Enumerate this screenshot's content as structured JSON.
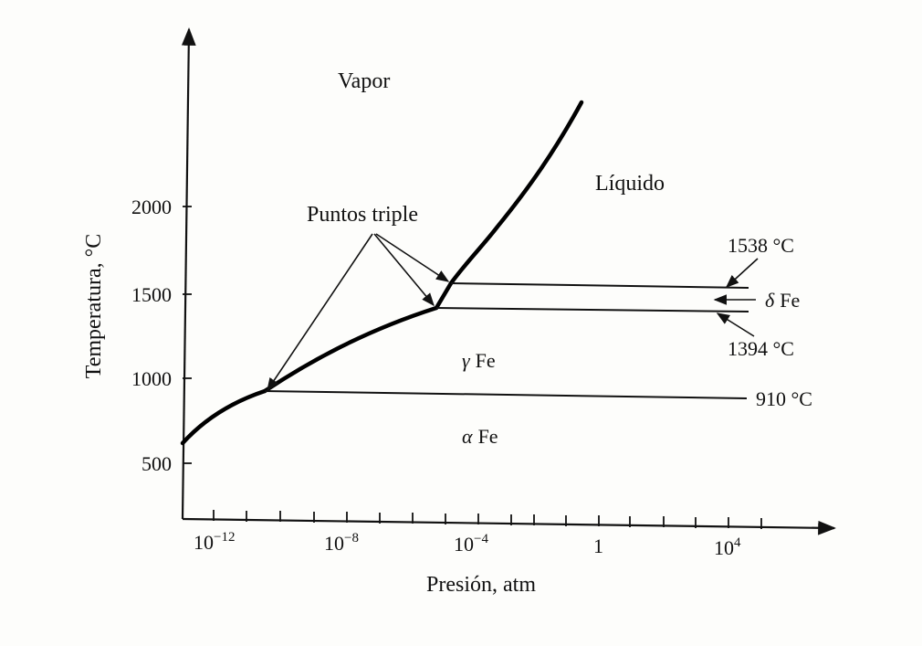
{
  "axes": {
    "x_label": "Presión, atm",
    "y_label": "Temperatura, °C",
    "x_ticks": [
      {
        "base": "10",
        "exp": "−12"
      },
      {
        "base": "10",
        "exp": "−8"
      },
      {
        "base": "10",
        "exp": "−4"
      },
      {
        "base": "1",
        "exp": ""
      },
      {
        "base": "10",
        "exp": "4"
      }
    ],
    "y_ticks": [
      "2000",
      "1500",
      "1000",
      "500"
    ]
  },
  "regions": {
    "vapor": "Vapor",
    "liquid": "Líquido",
    "gamma": "Fe",
    "alpha": "Fe",
    "delta": "Fe",
    "gamma_symbol": "γ",
    "alpha_symbol": "α",
    "delta_symbol": "δ"
  },
  "annotations": {
    "triple_points": "Puntos triple",
    "t1538": "1538 °C",
    "t1394": "1394 °C",
    "t910": "910 °C"
  }
}
